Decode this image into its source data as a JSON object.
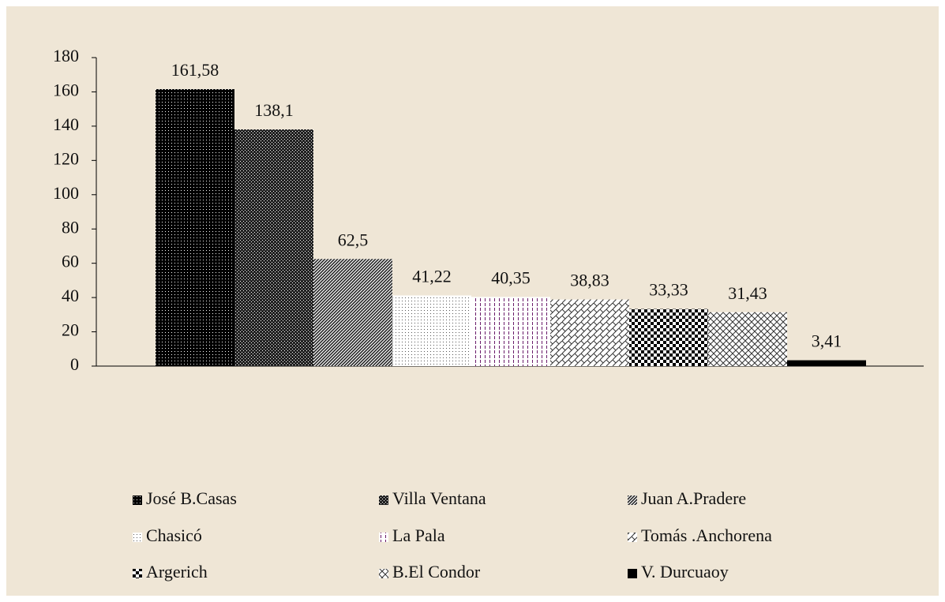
{
  "chart_data": {
    "type": "bar",
    "categories": [
      "José B.Casas",
      "Villa Ventana",
      "Juan A.Pradere",
      "Chasicó",
      "La Pala",
      "Tomás .Anchorena",
      "Argerich",
      "B.El Condor",
      "V. Durcuaoy"
    ],
    "values": [
      161.58,
      138.1,
      62.5,
      41.22,
      40.35,
      38.83,
      33.33,
      31.43,
      3.41
    ],
    "value_labels": [
      "161,58",
      "138,1",
      "62,5",
      "41,22",
      "40,35",
      "38,83",
      "33,33",
      "31,43",
      "3,41"
    ],
    "colors": [
      "#000000",
      "#222222",
      "#222222",
      "#555555",
      "#6a1b6a",
      "#333333",
      "#000000",
      "#333333",
      "#000000"
    ],
    "ylim": [
      0,
      180
    ],
    "yticks": [
      0,
      20,
      40,
      60,
      80,
      100,
      120,
      140,
      160,
      180
    ],
    "legend": "bottom"
  }
}
